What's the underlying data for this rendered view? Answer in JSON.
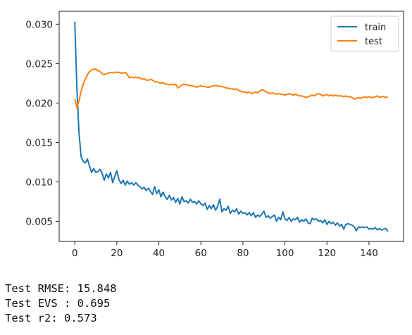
{
  "chart_data": {
    "type": "line",
    "title": "",
    "xlabel": "",
    "ylabel": "",
    "xlim": [
      -7.45,
      156.45
    ],
    "ylim": [
      0.00245,
      0.03164
    ],
    "xticks": [
      0,
      20,
      40,
      60,
      80,
      100,
      120,
      140
    ],
    "yticks": [
      0.005,
      0.01,
      0.015,
      0.02,
      0.025,
      0.03
    ],
    "ytick_labels": [
      "0.005",
      "0.010",
      "0.015",
      "0.020",
      "0.025",
      "0.030"
    ],
    "grid": false,
    "legend_position": "top-right",
    "series": [
      {
        "name": "train",
        "color": "#1f77b4",
        "values": [
          0.0303,
          0.0218,
          0.0162,
          0.0132,
          0.0126,
          0.0124,
          0.0129,
          0.012,
          0.0112,
          0.0117,
          0.0112,
          0.0113,
          0.0116,
          0.0111,
          0.0102,
          0.011,
          0.0105,
          0.0112,
          0.0099,
          0.0107,
          0.0114,
          0.0103,
          0.0098,
          0.0102,
          0.0096,
          0.0101,
          0.0097,
          0.0099,
          0.0096,
          0.0099,
          0.0096,
          0.0094,
          0.0091,
          0.0093,
          0.0089,
          0.0092,
          0.0088,
          0.0084,
          0.0094,
          0.0085,
          0.009,
          0.0081,
          0.0087,
          0.0081,
          0.0078,
          0.0083,
          0.0077,
          0.008,
          0.0074,
          0.0079,
          0.0072,
          0.0081,
          0.0075,
          0.0076,
          0.0073,
          0.0078,
          0.0074,
          0.0075,
          0.0072,
          0.0076,
          0.0072,
          0.007,
          0.0073,
          0.0065,
          0.007,
          0.0066,
          0.0071,
          0.0064,
          0.0069,
          0.0078,
          0.0062,
          0.0066,
          0.0064,
          0.0069,
          0.006,
          0.0064,
          0.0062,
          0.0066,
          0.0059,
          0.0063,
          0.006,
          0.0061,
          0.0058,
          0.0061,
          0.0057,
          0.0061,
          0.0055,
          0.0058,
          0.0056,
          0.0059,
          0.0063,
          0.0055,
          0.0057,
          0.0054,
          0.0056,
          0.0058,
          0.005,
          0.0055,
          0.0052,
          0.0062,
          0.0053,
          0.0051,
          0.0055,
          0.005,
          0.0053,
          0.0052,
          0.0055,
          0.0049,
          0.0052,
          0.005,
          0.0053,
          0.0048,
          0.0047,
          0.0054,
          0.0052,
          0.0053,
          0.005,
          0.0051,
          0.0048,
          0.0052,
          0.0046,
          0.005,
          0.0047,
          0.0049,
          0.0045,
          0.0048,
          0.0044,
          0.0046,
          0.004,
          0.0046,
          0.0047,
          0.0046,
          0.0045,
          0.0043,
          0.0038,
          0.0043,
          0.0042,
          0.0043,
          0.0042,
          0.0043,
          0.004,
          0.0041,
          0.004,
          0.0042,
          0.0039,
          0.0041,
          0.0039,
          0.004,
          0.0041,
          0.0037
        ]
      },
      {
        "name": "test",
        "color": "#ff7f0e",
        "values": [
          0.0205,
          0.0194,
          0.0203,
          0.0215,
          0.0224,
          0.023,
          0.0236,
          0.024,
          0.0242,
          0.0243,
          0.0243,
          0.0241,
          0.024,
          0.0237,
          0.0236,
          0.0237,
          0.0238,
          0.0239,
          0.0238,
          0.0239,
          0.0239,
          0.0239,
          0.0238,
          0.0238,
          0.0239,
          0.0236,
          0.0232,
          0.0233,
          0.0232,
          0.0233,
          0.0232,
          0.0232,
          0.023,
          0.0231,
          0.0229,
          0.0229,
          0.023,
          0.0229,
          0.0227,
          0.0227,
          0.0226,
          0.0225,
          0.0226,
          0.0224,
          0.0224,
          0.0223,
          0.0224,
          0.0223,
          0.0224,
          0.0219,
          0.0221,
          0.0223,
          0.0224,
          0.0223,
          0.0223,
          0.0222,
          0.0222,
          0.0221,
          0.022,
          0.0221,
          0.0222,
          0.0221,
          0.0221,
          0.022,
          0.022,
          0.0221,
          0.0222,
          0.0222,
          0.0222,
          0.0221,
          0.0221,
          0.022,
          0.0219,
          0.0219,
          0.0218,
          0.0218,
          0.0217,
          0.0218,
          0.0216,
          0.0215,
          0.0214,
          0.0214,
          0.0213,
          0.0214,
          0.0212,
          0.0213,
          0.0214,
          0.0213,
          0.0215,
          0.0217,
          0.0216,
          0.0214,
          0.0213,
          0.0212,
          0.0213,
          0.0212,
          0.0211,
          0.0212,
          0.0211,
          0.0211,
          0.021,
          0.0211,
          0.0212,
          0.0211,
          0.021,
          0.0211,
          0.021,
          0.0209,
          0.0209,
          0.0208,
          0.0207,
          0.0208,
          0.0209,
          0.021,
          0.0209,
          0.0211,
          0.0212,
          0.0211,
          0.0209,
          0.021,
          0.0211,
          0.0209,
          0.021,
          0.0209,
          0.021,
          0.0209,
          0.0209,
          0.0209,
          0.0208,
          0.0209,
          0.0208,
          0.0208,
          0.0207,
          0.0205,
          0.0206,
          0.0207,
          0.0206,
          0.0207,
          0.0208,
          0.0207,
          0.0208,
          0.0207,
          0.0207,
          0.0208,
          0.0209,
          0.0207,
          0.0208,
          0.0208,
          0.0207,
          0.0208
        ]
      }
    ]
  },
  "output": {
    "lines": [
      "Test RMSE: 15.848",
      "Test EVS : 0.695",
      "Test r2: 0.573"
    ]
  },
  "colors": {
    "axis": "#222222",
    "legend_border": "#cccccc"
  }
}
